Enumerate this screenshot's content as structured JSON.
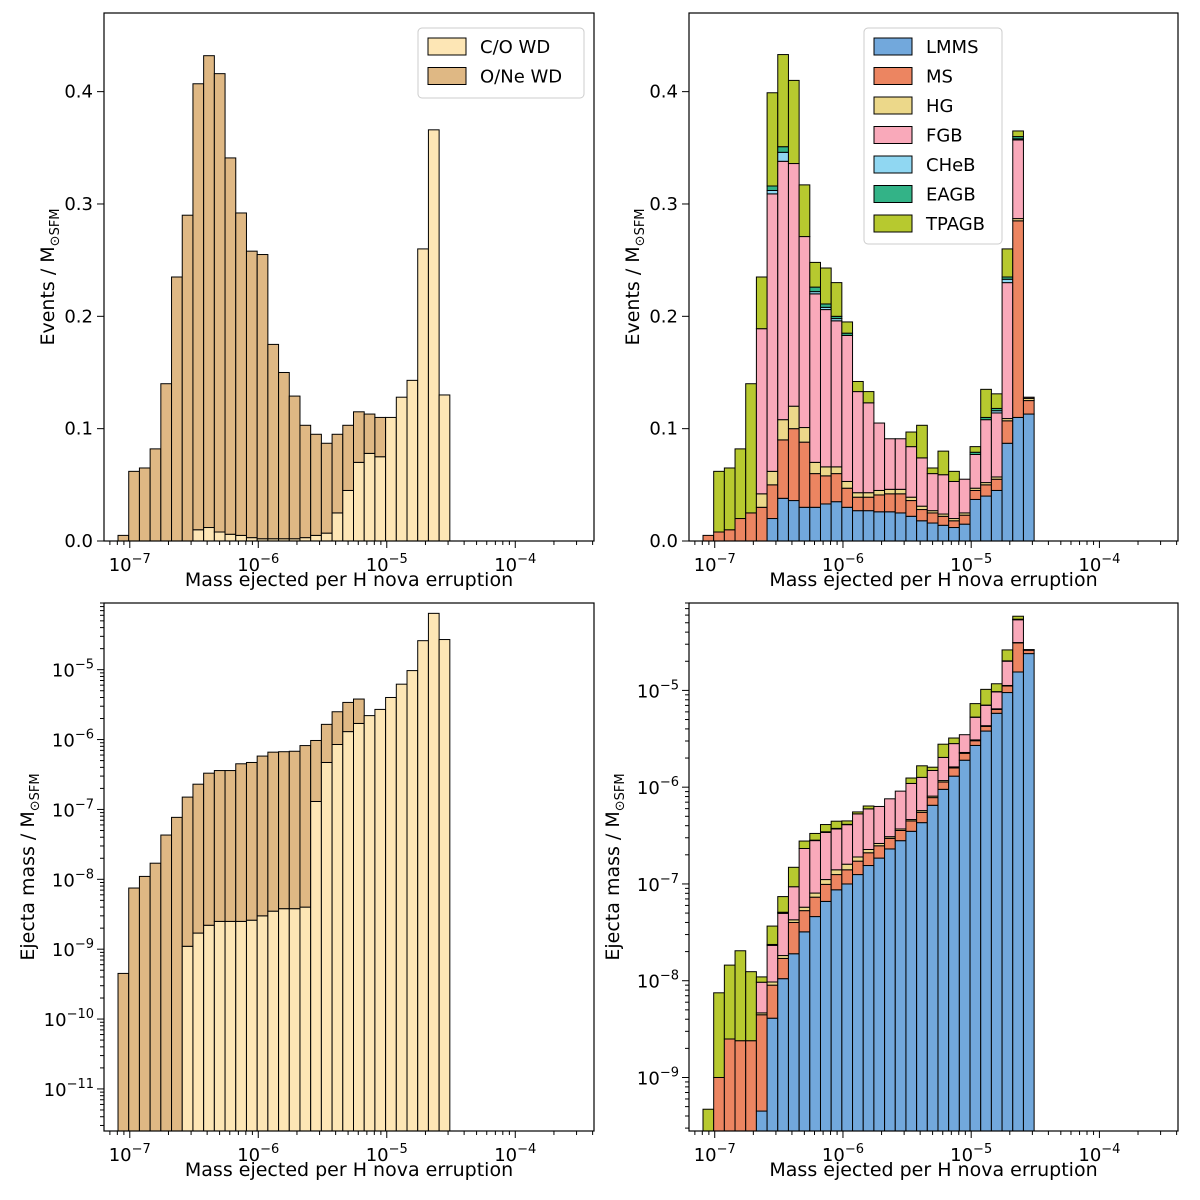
{
  "figure_colors": {
    "CO": "#fde6b5",
    "ONe": "#dfb884",
    "LMMS": "#72a8dc",
    "MS": "#ec8561",
    "HG": "#ecd88a",
    "FGB": "#f9a9ba",
    "CHeB": "#90d7f2",
    "EAGB": "#33b387",
    "TPAGB": "#b7c92f"
  },
  "chart_data": [
    {
      "id": "top-left",
      "type": "bar",
      "stacked": true,
      "xscale": "log",
      "yscale": "linear",
      "xlim": [
        6.3e-08,
        0.00041
      ],
      "ylim": [
        0,
        0.47
      ],
      "xlabel": "Mass ejected per H nova erruption",
      "ylabel": "Events / M⊙SFM",
      "yticks": [
        {
          "v": 0.0,
          "label": "0.0"
        },
        {
          "v": 0.1,
          "label": "0.1"
        },
        {
          "v": 0.2,
          "label": "0.2"
        },
        {
          "v": 0.3,
          "label": "0.3"
        },
        {
          "v": 0.4,
          "label": "0.4"
        }
      ],
      "xticks": [
        {
          "v": 1e-07,
          "base": "10",
          "exp": "−7"
        },
        {
          "v": 1e-06,
          "base": "10",
          "exp": "−6"
        },
        {
          "v": 1e-05,
          "base": "10",
          "exp": "−5"
        },
        {
          "v": 0.0001,
          "base": "10",
          "exp": "−4"
        }
      ],
      "legend": {
        "position": "top-right",
        "entries": [
          "CO",
          "ONe"
        ]
      },
      "series": [
        {
          "key": "CO",
          "name": "C/O WD",
          "values": [
            0,
            0,
            0,
            0,
            0,
            0,
            0,
            0.01,
            0.012,
            0.008,
            0.006,
            0.005,
            0.003,
            0.002,
            0.002,
            0.002,
            0.002,
            0.003,
            0.005,
            0.007,
            0.025,
            0.045,
            0.07,
            0.078,
            0.075,
            0.11,
            0.128,
            0.143,
            0.26,
            0.366,
            0.13
          ]
        },
        {
          "key": "ONe",
          "name": "O/Ne WD",
          "values": [
            0.005,
            0.062,
            0.065,
            0.082,
            0.14,
            0.235,
            0.29,
            0.397,
            0.42,
            0.408,
            0.335,
            0.287,
            0.255,
            0.253,
            0.173,
            0.148,
            0.127,
            0.1,
            0.09,
            0.08,
            0.07,
            0.058,
            0.045,
            0.035,
            0.035,
            0,
            0,
            0,
            0,
            0,
            0
          ]
        }
      ]
    },
    {
      "id": "top-right",
      "type": "bar",
      "stacked": true,
      "xscale": "log",
      "yscale": "linear",
      "xlim": [
        6.3e-08,
        0.00041
      ],
      "ylim": [
        0,
        0.47
      ],
      "xlabel": "Mass ejected per H nova erruption",
      "ylabel": "Events / M⊙SFM",
      "yticks": [
        {
          "v": 0.0,
          "label": "0.0"
        },
        {
          "v": 0.1,
          "label": "0.1"
        },
        {
          "v": 0.2,
          "label": "0.2"
        },
        {
          "v": 0.3,
          "label": "0.3"
        },
        {
          "v": 0.4,
          "label": "0.4"
        }
      ],
      "xticks": [
        {
          "v": 1e-07,
          "base": "10",
          "exp": "−7"
        },
        {
          "v": 1e-06,
          "base": "10",
          "exp": "−6"
        },
        {
          "v": 1e-05,
          "base": "10",
          "exp": "−5"
        },
        {
          "v": 0.0001,
          "base": "10",
          "exp": "−4"
        }
      ],
      "legend": {
        "position": "top-center",
        "entries": [
          "LMMS",
          "MS",
          "HG",
          "FGB",
          "CHeB",
          "EAGB",
          "TPAGB"
        ]
      },
      "series": [
        {
          "key": "LMMS",
          "name": "LMMS",
          "values": [
            0,
            0,
            0,
            0,
            0,
            0,
            0.02,
            0.038,
            0.036,
            0.03,
            0.03,
            0.033,
            0.035,
            0.03,
            0.027,
            0.027,
            0.026,
            0.026,
            0.025,
            0.022,
            0.018,
            0.016,
            0.014,
            0.012,
            0.015,
            0.037,
            0.04,
            0.045,
            0.087,
            0.11,
            0.113
          ]
        },
        {
          "key": "MS",
          "name": "MS",
          "values": [
            0.005,
            0.008,
            0.01,
            0.02,
            0.025,
            0.03,
            0.03,
            0.052,
            0.064,
            0.058,
            0.03,
            0.025,
            0.025,
            0.017,
            0.012,
            0.012,
            0.015,
            0.016,
            0.017,
            0.014,
            0.01,
            0.009,
            0.008,
            0.006,
            0.008,
            0.008,
            0.01,
            0.01,
            0.02,
            0.175,
            0.012
          ]
        },
        {
          "key": "HG",
          "name": "HG",
          "values": [
            0,
            0,
            0,
            0,
            0,
            0.012,
            0.012,
            0.018,
            0.02,
            0.013,
            0.01,
            0.008,
            0.006,
            0.006,
            0.004,
            0.004,
            0.004,
            0.004,
            0.004,
            0.003,
            0.003,
            0.002,
            0.002,
            0.002,
            0.002,
            0.002,
            0.002,
            0.002,
            0.002,
            0.002,
            0.002
          ]
        },
        {
          "key": "FGB",
          "name": "FGB",
          "values": [
            0,
            0,
            0,
            0,
            0,
            0.147,
            0.247,
            0.23,
            0.216,
            0.17,
            0.15,
            0.14,
            0.13,
            0.13,
            0.09,
            0.08,
            0.06,
            0.045,
            0.045,
            0.045,
            0.043,
            0.033,
            0.035,
            0.033,
            0.03,
            0.03,
            0.056,
            0.057,
            0.121,
            0.07,
            0.001
          ]
        },
        {
          "key": "CHeB",
          "name": "CHeB",
          "values": [
            0,
            0,
            0,
            0,
            0,
            0,
            0.003,
            0.008,
            0,
            0,
            0.002,
            0.002,
            0.002,
            0,
            0,
            0,
            0,
            0,
            0,
            0,
            0,
            0,
            0,
            0,
            0,
            0,
            0,
            0.002,
            0.003,
            0.001,
            0
          ]
        },
        {
          "key": "EAGB",
          "name": "EAGB",
          "values": [
            0,
            0,
            0,
            0,
            0,
            0,
            0.004,
            0.005,
            0,
            0,
            0.004,
            0.003,
            0.002,
            0.002,
            0,
            0,
            0,
            0,
            0,
            0,
            0,
            0,
            0,
            0,
            0,
            0.002,
            0.002,
            0.002,
            0.002,
            0.002,
            0
          ]
        },
        {
          "key": "TPAGB",
          "name": "TPAGB",
          "values": [
            0,
            0.054,
            0.055,
            0.062,
            0.115,
            0.046,
            0.083,
            0.082,
            0.074,
            0.046,
            0.022,
            0.032,
            0.03,
            0.01,
            0.009,
            0.01,
            0,
            0,
            0,
            0.013,
            0.029,
            0.005,
            0.021,
            0.009,
            0,
            0.005,
            0.025,
            0.013,
            0.025,
            0.005,
            0
          ]
        }
      ]
    },
    {
      "id": "bottom-left",
      "type": "bar",
      "stacked": true,
      "xscale": "log",
      "yscale": "log",
      "xlim": [
        6.3e-08,
        0.00041
      ],
      "ylim": [
        2.5e-12,
        9e-05
      ],
      "xlabel": "Mass ejected per H nova erruption",
      "ylabel": "Ejecta mass / M⊙SFM",
      "yticks": [
        {
          "v": 1e-11,
          "base": "10",
          "exp": "−11"
        },
        {
          "v": 1e-10,
          "base": "10",
          "exp": "−10"
        },
        {
          "v": 1e-09,
          "base": "10",
          "exp": "−9"
        },
        {
          "v": 1e-08,
          "base": "10",
          "exp": "−8"
        },
        {
          "v": 1e-07,
          "base": "10",
          "exp": "−7"
        },
        {
          "v": 1e-06,
          "base": "10",
          "exp": "−6"
        },
        {
          "v": 1e-05,
          "base": "10",
          "exp": "−5"
        }
      ],
      "xticks": [
        {
          "v": 1e-07,
          "base": "10",
          "exp": "−7"
        },
        {
          "v": 1e-06,
          "base": "10",
          "exp": "−6"
        },
        {
          "v": 1e-05,
          "base": "10",
          "exp": "−5"
        },
        {
          "v": 0.0001,
          "base": "10",
          "exp": "−4"
        }
      ],
      "series_cumulative": true,
      "series": [
        {
          "key": "CO",
          "name": "C/O WD",
          "values": [
            0,
            0,
            0,
            0,
            0,
            0,
            1.1e-09,
            1.7e-09,
            2.2e-09,
            2.5e-09,
            2.5e-09,
            2.5e-09,
            2.6e-09,
            3e-09,
            3.5e-09,
            3.8e-09,
            3.8e-09,
            4e-09,
            1.3e-07,
            4.7e-07,
            8.5e-07,
            1.3e-06,
            1.7e-06,
            2.2e-06,
            2.7e-06,
            4e-06,
            6.2e-06,
            9.7e-06,
            2.6e-05,
            6.4e-05,
            2.7e-05
          ]
        },
        {
          "key": "ONe",
          "name": "O/Ne WD",
          "total": [
            4.5e-10,
            7.5e-09,
            1.1e-08,
            1.7e-08,
            4.3e-08,
            7.7e-08,
            1.5e-07,
            2.3e-07,
            3.3e-07,
            3.6e-07,
            3.6e-07,
            4.5e-07,
            4.7e-07,
            5.8e-07,
            6.6e-07,
            6.7e-07,
            6.8e-07,
            8.2e-07,
            9.7e-07,
            1.65e-06,
            2.5e-06,
            3.4e-06,
            3.8e-06
          ],
          "values": [
            4.5e-10,
            7.5e-09,
            1.1e-08,
            1.7e-08,
            4.3e-08,
            7.7e-08,
            1.49e-07,
            2.28e-07,
            3.28e-07,
            3.575e-07,
            3.575e-07,
            4.475e-07,
            4.674e-07,
            5.77e-07,
            6.565e-07,
            6.662e-07,
            6.762e-07,
            8.16e-07,
            8.4e-07,
            1.18e-06,
            1.65e-06,
            2.1e-06,
            2.1e-06,
            0,
            0,
            0,
            0,
            0,
            0,
            0,
            0
          ]
        }
      ]
    },
    {
      "id": "bottom-right",
      "type": "bar",
      "stacked": true,
      "xscale": "log",
      "yscale": "log",
      "xlim": [
        6.3e-08,
        0.00041
      ],
      "ylim": [
        2.8e-10,
        8e-05
      ],
      "xlabel": "Mass ejected per H nova erruption",
      "ylabel": "Ejecta mass / M⊙SFM",
      "yticks": [
        {
          "v": 1e-09,
          "base": "10",
          "exp": "−9"
        },
        {
          "v": 1e-08,
          "base": "10",
          "exp": "−8"
        },
        {
          "v": 1e-07,
          "base": "10",
          "exp": "−7"
        },
        {
          "v": 1e-06,
          "base": "10",
          "exp": "−6"
        },
        {
          "v": 1e-05,
          "base": "10",
          "exp": "−5"
        }
      ],
      "xticks": [
        {
          "v": 1e-07,
          "base": "10",
          "exp": "−7"
        },
        {
          "v": 1e-06,
          "base": "10",
          "exp": "−6"
        },
        {
          "v": 1e-05,
          "base": "10",
          "exp": "−5"
        },
        {
          "v": 0.0001,
          "base": "10",
          "exp": "−4"
        }
      ],
      "series": [
        {
          "key": "LMMS",
          "name": "LMMS",
          "values": [
            0,
            0,
            0,
            0,
            0,
            4.5e-10,
            4.1e-09,
            1.05e-08,
            1.9e-08,
            3.2e-08,
            4.6e-08,
            6.6e-08,
            8.7e-08,
            1e-07,
            1.25e-07,
            1.55e-07,
            1.85e-07,
            2.3e-07,
            2.8e-07,
            3.5e-07,
            4.3e-07,
            6.5e-07,
            9.5e-07,
            1.3e-06,
            1.9e-06,
            2.7e-06,
            3.8e-06,
            5.8e-06,
            9.5e-06,
            1.55e-05,
            2.4e-05
          ]
        },
        {
          "key": "MS",
          "name": "MS",
          "values": [
            0,
            1e-09,
            2.5e-09,
            2.4e-09,
            2.4e-09,
            4e-09,
            4.9e-09,
            6.5e-09,
            2.1e-08,
            2.1e-08,
            2.7e-08,
            3.3e-08,
            3.8e-08,
            4e-08,
            4.7e-08,
            5.5e-08,
            6.3e-08,
            6.6e-08,
            7.7e-08,
            9.8e-08,
            1.2e-07,
            1.3e-07,
            1.8e-07,
            2.8e-07,
            3.4e-07,
            3.2e-07,
            4.5e-07,
            5.6e-07,
            1.6e-06,
            1.55e-05,
            2e-06
          ]
        },
        {
          "key": "HG",
          "name": "HG",
          "values": [
            0,
            0,
            0,
            0,
            0,
            2e-10,
            7e-10,
            1.2e-09,
            2.6e-09,
            4.5e-09,
            7.5e-09,
            1.2e-08,
            1.5e-08,
            2e-08,
            1.8e-08,
            1.7e-08,
            1.4e-08,
            1.2e-08,
            1.3e-08,
            1.5e-08,
            2.3e-08,
            2.8e-08,
            4e-08,
            4e-08,
            4.4e-08,
            6e-08,
            7e-08,
            9e-08,
            1.4e-07,
            2e-07,
            2.8e-07
          ]
        },
        {
          "key": "FGB",
          "name": "FGB",
          "values": [
            0,
            0,
            0,
            0,
            0,
            5e-09,
            1.35e-08,
            3.15e-08,
            5.1e-08,
            1.75e-07,
            2e-07,
            2.3e-07,
            2.3e-07,
            2.5e-07,
            3.4e-07,
            3.7e-07,
            3.7e-07,
            4.5e-07,
            5.4e-07,
            6.3e-07,
            6.9e-07,
            6.8e-07,
            8.6e-07,
            1.2e-06,
            1.2e-06,
            2.2e-06,
            2.7e-06,
            3.2e-06,
            8.8e-06,
            2.25e-05,
            1e-07
          ]
        },
        {
          "key": "CHeB",
          "name": "CHeB",
          "values": [
            0,
            0,
            0,
            0,
            0,
            0,
            2e-10,
            6e-10,
            0,
            0,
            1e-09,
            2e-09,
            2e-09,
            0,
            0,
            0,
            0,
            0,
            0,
            0,
            0,
            0,
            0,
            0,
            0,
            0,
            0,
            2e-08,
            8e-08,
            3e-07,
            0
          ]
        },
        {
          "key": "EAGB",
          "name": "EAGB",
          "values": [
            0,
            0,
            0,
            0,
            0,
            0,
            3e-10,
            7e-10,
            0,
            0,
            2e-09,
            3e-09,
            3e-09,
            3e-09,
            0,
            0,
            0,
            0,
            0,
            0,
            0,
            0,
            0,
            0,
            0,
            2e-08,
            3e-08,
            4e-08,
            8e-08,
            4e-07,
            0
          ]
        },
        {
          "key": "TPAGB",
          "name": "TPAGB",
          "values": [
            4.7e-10,
            6.5e-09,
            1.2e-08,
            1.8e-08,
            1e-08,
            1.3e-09,
            1.3e-08,
            2.3e-08,
            5.5e-08,
            4.5e-08,
            4.9e-08,
            6.5e-08,
            7e-08,
            3.5e-08,
            2.5e-08,
            4.2e-08,
            0,
            0,
            0,
            1.5e-07,
            4e-07,
            1.2e-07,
            7.5e-07,
            4e-07,
            0,
            2e-06,
            3.2e-06,
            2e-06,
            6e-06,
            4e-06,
            0
          ]
        }
      ]
    }
  ]
}
